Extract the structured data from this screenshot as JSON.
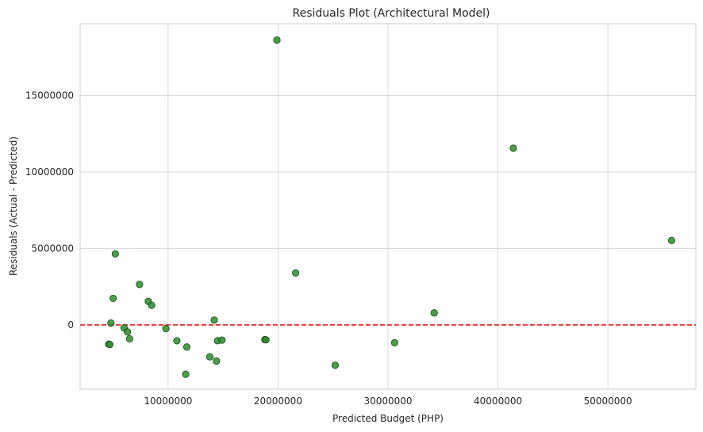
{
  "chart_data": {
    "type": "scatter",
    "title": "Residuals Plot (Architectural Model)",
    "xlabel": "Predicted Budget (PHP)",
    "ylabel": "Residuals (Actual - Predicted)",
    "xlim": [
      2000000,
      58000000
    ],
    "ylim": [
      -4200000,
      19700000
    ],
    "xticks": [
      10000000,
      20000000,
      30000000,
      40000000,
      50000000
    ],
    "xtick_labels": [
      "10000000",
      "20000000",
      "30000000",
      "40000000",
      "50000000"
    ],
    "yticks": [
      0,
      5000000,
      10000000,
      15000000
    ],
    "ytick_labels": [
      "0",
      "5000000",
      "10000000",
      "15000000"
    ],
    "grid": true,
    "reference_line": {
      "y": 0,
      "color": "#e41a1c",
      "style": "dashed"
    },
    "point_color": "#2a8c2a",
    "point_edge_color": "#1b4d1b",
    "points": [
      {
        "x": 4600000,
        "y": -1250000
      },
      {
        "x": 4700000,
        "y": -1280000
      },
      {
        "x": 4800000,
        "y": 130000
      },
      {
        "x": 5000000,
        "y": 1740000
      },
      {
        "x": 5200000,
        "y": 4650000
      },
      {
        "x": 6000000,
        "y": -180000
      },
      {
        "x": 6300000,
        "y": -450000
      },
      {
        "x": 6500000,
        "y": -900000
      },
      {
        "x": 7400000,
        "y": 2650000
      },
      {
        "x": 8200000,
        "y": 1540000
      },
      {
        "x": 8500000,
        "y": 1290000
      },
      {
        "x": 9800000,
        "y": -240000
      },
      {
        "x": 10800000,
        "y": -1030000
      },
      {
        "x": 11600000,
        "y": -3220000
      },
      {
        "x": 11700000,
        "y": -1440000
      },
      {
        "x": 13800000,
        "y": -2080000
      },
      {
        "x": 14200000,
        "y": 320000
      },
      {
        "x": 14400000,
        "y": -2360000
      },
      {
        "x": 14500000,
        "y": -1030000
      },
      {
        "x": 14900000,
        "y": -990000
      },
      {
        "x": 18800000,
        "y": -960000
      },
      {
        "x": 18900000,
        "y": -970000
      },
      {
        "x": 19900000,
        "y": 18640000
      },
      {
        "x": 21600000,
        "y": 3400000
      },
      {
        "x": 25200000,
        "y": -2630000
      },
      {
        "x": 30600000,
        "y": -1160000
      },
      {
        "x": 34200000,
        "y": 790000
      },
      {
        "x": 41400000,
        "y": 11560000
      },
      {
        "x": 55800000,
        "y": 5530000
      }
    ]
  }
}
